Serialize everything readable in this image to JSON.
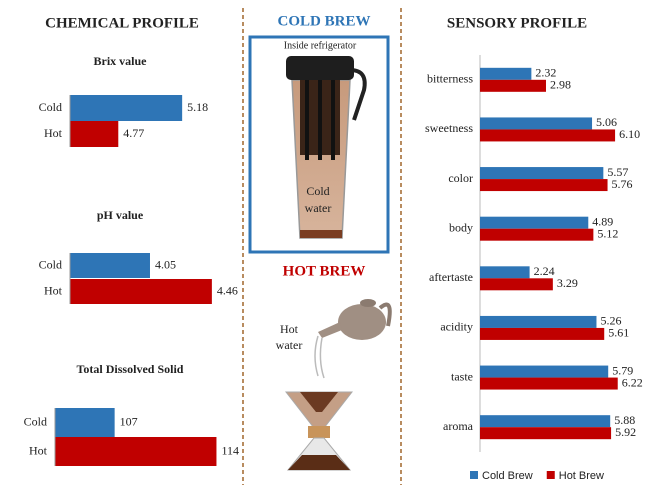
{
  "chemical_profile": {
    "title": "CHEMICAL  PROFILE"
  },
  "sensory_profile": {
    "title": "SENSORY PROFILE"
  },
  "cold_brew": {
    "title": "COLD BREW",
    "caption": "Inside refrigerator",
    "label": [
      "Cold",
      "water"
    ]
  },
  "hot_brew": {
    "title": "HOT BREW",
    "label": [
      "Hot",
      "water"
    ]
  },
  "chart_data": [
    {
      "type": "bar",
      "orientation": "horizontal",
      "title": "Brix value",
      "categories": [
        "Cold",
        "Hot"
      ],
      "values": [
        5.18,
        4.77
      ],
      "colors": [
        "#2e75b6",
        "#c00000"
      ],
      "xlim": [
        4.46,
        5.5
      ]
    },
    {
      "type": "bar",
      "orientation": "horizontal",
      "title": "pH  value",
      "categories": [
        "Cold",
        "Hot"
      ],
      "values": [
        4.05,
        4.46
      ],
      "colors": [
        "#2e75b6",
        "#c00000"
      ],
      "xlim": [
        3.52,
        4.6
      ]
    },
    {
      "type": "bar",
      "orientation": "horizontal",
      "title": "Total Dissolved Solid",
      "categories": [
        "Cold",
        "Hot"
      ],
      "values": [
        107,
        114
      ],
      "colors": [
        "#2e75b6",
        "#c00000"
      ],
      "xlim": [
        102.9,
        115
      ]
    },
    {
      "type": "grouped-bar",
      "orientation": "horizontal",
      "categories": [
        "bitterness",
        "sweetness",
        "color",
        "body",
        "aftertaste",
        "acidity",
        "taste",
        "aroma"
      ],
      "series": [
        {
          "name": "Cold Brew",
          "color": "#2e75b6",
          "values": [
            2.32,
            5.06,
            5.57,
            4.89,
            2.24,
            5.26,
            5.79,
            5.88
          ]
        },
        {
          "name": "Hot Brew",
          "color": "#c00000",
          "values": [
            2.98,
            6.1,
            5.76,
            5.12,
            3.29,
            5.61,
            6.22,
            5.92
          ],
          "value_labels": [
            "2.98",
            "6.10",
            "5.76",
            "5.12",
            "3.29",
            "5.61",
            "6.22",
            "5.92"
          ]
        }
      ],
      "xlim": [
        0,
        7
      ],
      "legend": "bottom"
    }
  ]
}
